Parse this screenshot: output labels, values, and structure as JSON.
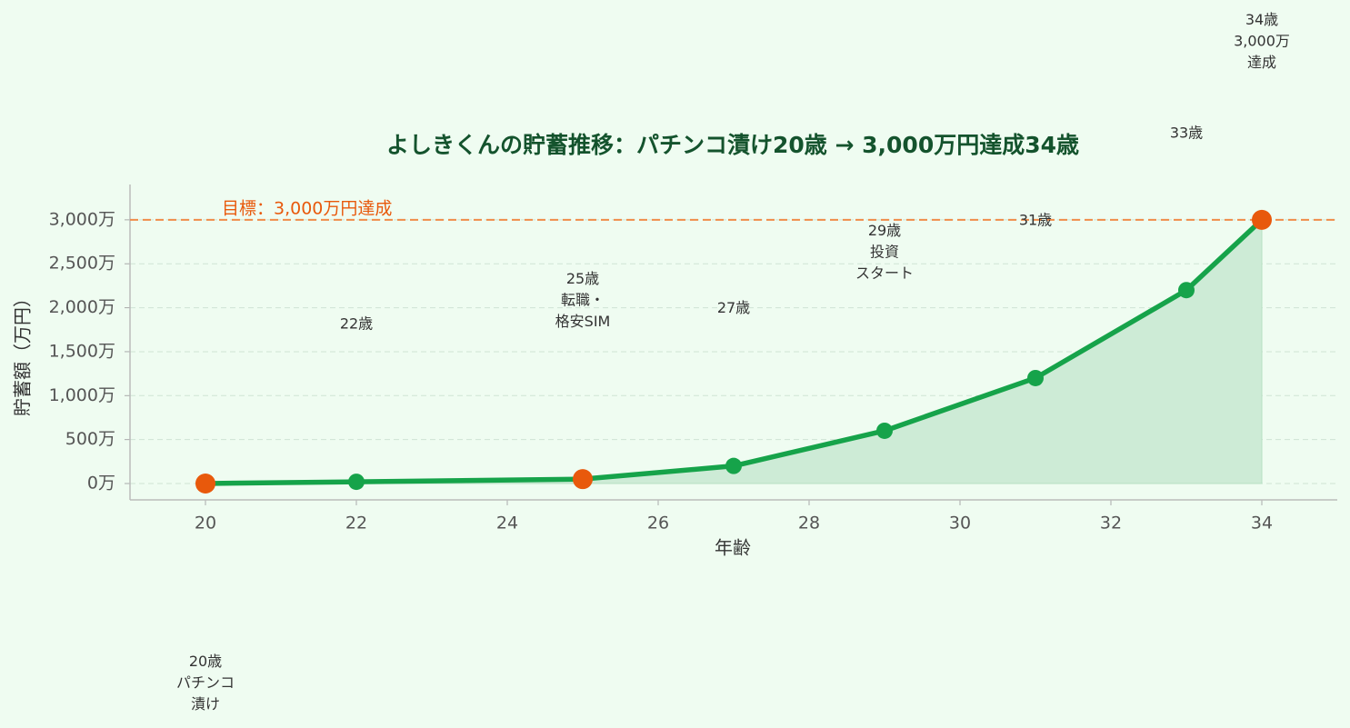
{
  "chart_data": {
    "type": "line",
    "title": "よしきくんの貯蓄推移：パチンコ漬け20歳 → 3,000万円達成34歳",
    "xlabel": "年齢",
    "ylabel": "貯蓄額（万円）",
    "x": [
      20,
      22,
      25,
      27,
      29,
      31,
      33,
      34
    ],
    "values": [
      0,
      20,
      50,
      200,
      600,
      1200,
      2200,
      3000
    ],
    "color": "#16a34a",
    "fill_color": "#cdebd6",
    "marker_colors": [
      "#e8590c",
      "#16a34a",
      "#e8590c",
      "#16a34a",
      "#16a34a",
      "#16a34a",
      "#16a34a",
      "#e8590c"
    ],
    "annotations": [
      [
        "20歳",
        "パチンコ",
        "漬け"
      ],
      [
        "22歳"
      ],
      [
        "25歳",
        "転職・",
        "格安SIM"
      ],
      [
        "27歳"
      ],
      [
        "29歳",
        "投資",
        "スタート"
      ],
      [
        "31歳"
      ],
      [
        "33歳"
      ],
      [
        "34歳",
        "3,000万",
        "達成"
      ]
    ],
    "target": {
      "value": 3000,
      "label": "目標：3,000万円達成",
      "color": "#f08c4a"
    },
    "xlim": [
      19,
      35
    ],
    "ylim": [
      -186,
      3402
    ],
    "xticks": [
      20,
      22,
      24,
      26,
      28,
      30,
      32,
      34
    ],
    "yticks": [
      {
        "value": 0,
        "label": "0万"
      },
      {
        "value": 500,
        "label": "500万"
      },
      {
        "value": 1000,
        "label": "1,000万"
      },
      {
        "value": 1500,
        "label": "1,500万"
      },
      {
        "value": 2000,
        "label": "2,000万"
      },
      {
        "value": 2500,
        "label": "2,500万"
      },
      {
        "value": 3000,
        "label": "3,000万"
      }
    ],
    "grid": true
  }
}
